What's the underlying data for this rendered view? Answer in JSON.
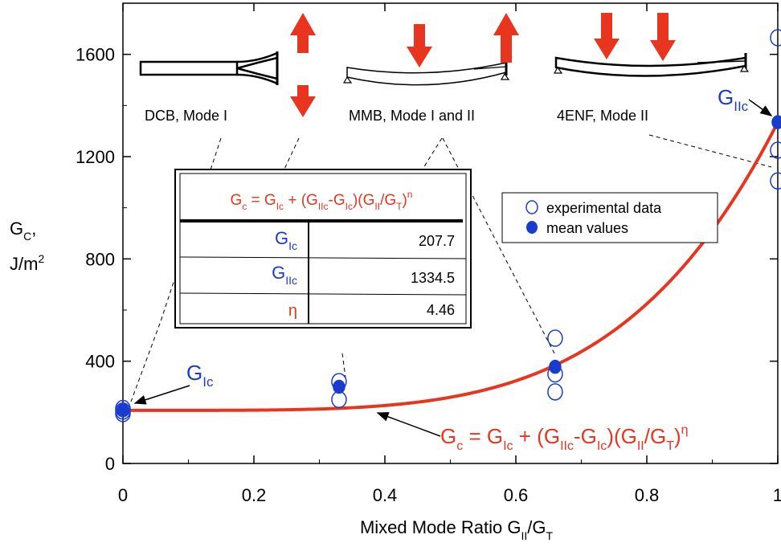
{
  "chart_data": {
    "type": "scatter",
    "xlabel": "Mixed Mode Ratio G",
    "xlabel_sub1": "II",
    "xlabel_mid": "/G",
    "xlabel_sub2": "T",
    "ylabel_main": "G",
    "ylabel_sub": "C",
    "ylabel_comma": ",",
    "ylabel_unit": "J/m",
    "ylabel_exp": "2",
    "xlim": [
      0,
      1
    ],
    "ylim": [
      0,
      1800
    ],
    "xticks": [
      0,
      0.2,
      0.4,
      0.6,
      0.8,
      1
    ],
    "xtick_labels": [
      "0",
      "0.2",
      "0.4",
      "0.6",
      "0.8",
      "1"
    ],
    "yticks": [
      0,
      400,
      800,
      1200,
      1600
    ],
    "ytick_labels": [
      "0",
      "400",
      "800",
      "1200",
      "1600"
    ],
    "grid": false,
    "legend_placement": "top-right",
    "series": [
      {
        "name": "experimental data",
        "marker": "open-circle",
        "color": "#1a3ccc",
        "x": [
          0,
          0,
          0,
          0.33,
          0.33,
          0.66,
          0.66,
          0.66,
          1,
          1,
          1
        ],
        "y": [
          195,
          205,
          215,
          320,
          250,
          490,
          350,
          280,
          1665,
          1225,
          1105
        ]
      },
      {
        "name": "mean values",
        "marker": "filled-circle",
        "color": "#1a3ccc",
        "x": [
          0,
          0.33,
          0.66,
          1
        ],
        "y": [
          207.7,
          300,
          378,
          1334.5
        ]
      }
    ],
    "fit": {
      "color": "#e8351f",
      "GIc": 207.7,
      "GIIc": 1334.5,
      "eta": 4.46
    },
    "equation": {
      "lhs": "G",
      "lhs_sub": "c",
      "eq": " = G",
      "sub1": "Ic",
      "plus": " + (G",
      "sub2": "IIc",
      "minus": "-G",
      "sub3": "Ic",
      "mid": ")(G",
      "sub4": "II",
      "slash": "/G",
      "sub5": "T",
      "close": ")",
      "exp": "η"
    },
    "table": {
      "header_exp": "n",
      "rows": [
        {
          "label_main": "G",
          "label_sub": "Ic",
          "value": "207.7"
        },
        {
          "label_main": "G",
          "label_sub": "IIc",
          "value": "1334.5"
        },
        {
          "label_main": "η",
          "label_sub": "",
          "value": "4.46"
        }
      ]
    },
    "annotations": {
      "gic_main": "G",
      "gic_sub": "Ic",
      "giic_main": "G",
      "giic_sub": "IIc",
      "dcb": "DCB, Mode I",
      "mmb": "MMB, Mode I and II",
      "enf": "4ENF, Mode II"
    },
    "colors": {
      "fit": "#e8351f",
      "data": "#1a3ccc",
      "arrow": "#e8351f"
    }
  }
}
